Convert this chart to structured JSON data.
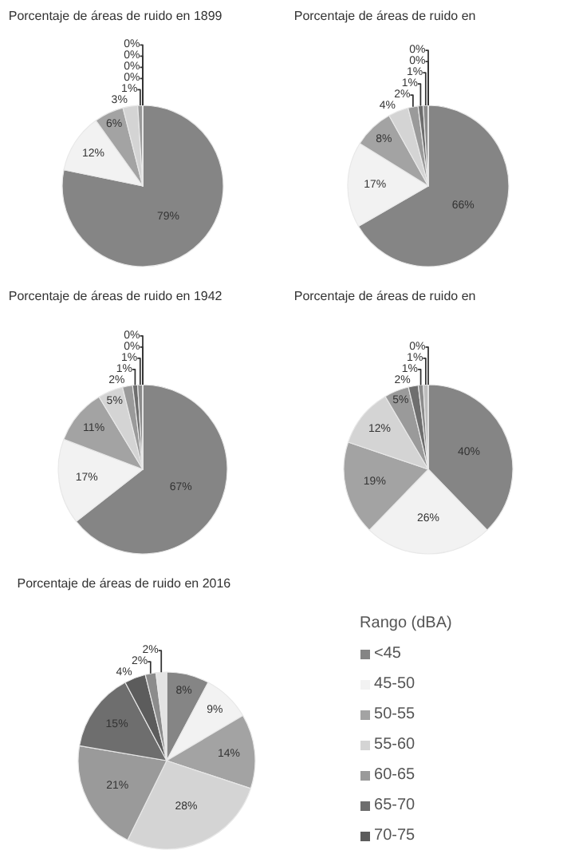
{
  "chart_data": [
    {
      "type": "pie",
      "title": "Porcentaje de áreas de ruido en 1899",
      "values": [
        79,
        12,
        6,
        3,
        1,
        0,
        0,
        0,
        0
      ],
      "value_labels": [
        "79%",
        "12%",
        "6%",
        "3%",
        "1%",
        "0%",
        "0%",
        "0%",
        "0%"
      ],
      "colors": [
        "#858585",
        "#f2f2f2",
        "#a3a3a3",
        "#d4d4d4",
        "#9a9a9a",
        "#6e6e6e",
        "#8c8c8c",
        "#bdbdbd",
        "#e3e3e3"
      ]
    },
    {
      "type": "pie",
      "title": "Porcentaje de áreas de ruido en",
      "values": [
        66,
        17,
        8,
        4,
        2,
        1,
        1,
        0,
        0
      ],
      "value_labels": [
        "66%",
        "17%",
        "8%",
        "4%",
        "2%",
        "1%",
        "1%",
        "0%",
        "0%"
      ],
      "colors": [
        "#858585",
        "#f2f2f2",
        "#a3a3a3",
        "#d4d4d4",
        "#9a9a9a",
        "#6e6e6e",
        "#8c8c8c",
        "#bdbdbd",
        "#e3e3e3"
      ]
    },
    {
      "type": "pie",
      "title": "Porcentaje de áreas de ruido en 1942",
      "values": [
        67,
        17,
        11,
        5,
        2,
        1,
        1,
        0,
        0
      ],
      "value_labels": [
        "67%",
        "17%",
        "11%",
        "5%",
        "2%",
        "1%",
        "1%",
        "0%",
        "0%"
      ],
      "colors": [
        "#858585",
        "#f2f2f2",
        "#a3a3a3",
        "#d4d4d4",
        "#9a9a9a",
        "#6e6e6e",
        "#8c8c8c",
        "#bdbdbd",
        "#e3e3e3"
      ]
    },
    {
      "type": "pie",
      "title": "Porcentaje de áreas de ruido en",
      "values": [
        40,
        26,
        19,
        12,
        5,
        2,
        1,
        1,
        0
      ],
      "value_labels": [
        "40%",
        "26%",
        "19%",
        "12%",
        "5%",
        "2%",
        "1%",
        "1%",
        "0%"
      ],
      "colors": [
        "#858585",
        "#f2f2f2",
        "#a3a3a3",
        "#d4d4d4",
        "#9a9a9a",
        "#6e6e6e",
        "#8c8c8c",
        "#bdbdbd",
        "#e3e3e3"
      ]
    },
    {
      "type": "pie",
      "title": "Porcentaje de áreas de ruido en 2016",
      "legend_title": "Rango (dBA)",
      "legend": "right",
      "categories": [
        "<45",
        "45-50",
        "50-55",
        "55-60",
        "60-65",
        "65-70",
        "70-75",
        null,
        null
      ],
      "values": [
        8,
        9,
        14,
        28,
        21,
        15,
        4,
        2,
        2
      ],
      "value_labels": [
        "8%",
        "9%",
        "14%",
        "28%",
        "21%",
        "15%",
        "4%",
        "2%",
        "2%"
      ],
      "colors": [
        "#858585",
        "#f2f2f2",
        "#a3a3a3",
        "#d4d4d4",
        "#9a9a9a",
        "#6e6e6e",
        "#5c5c5c",
        "#8c8c8c",
        "#e3e3e3"
      ]
    }
  ]
}
